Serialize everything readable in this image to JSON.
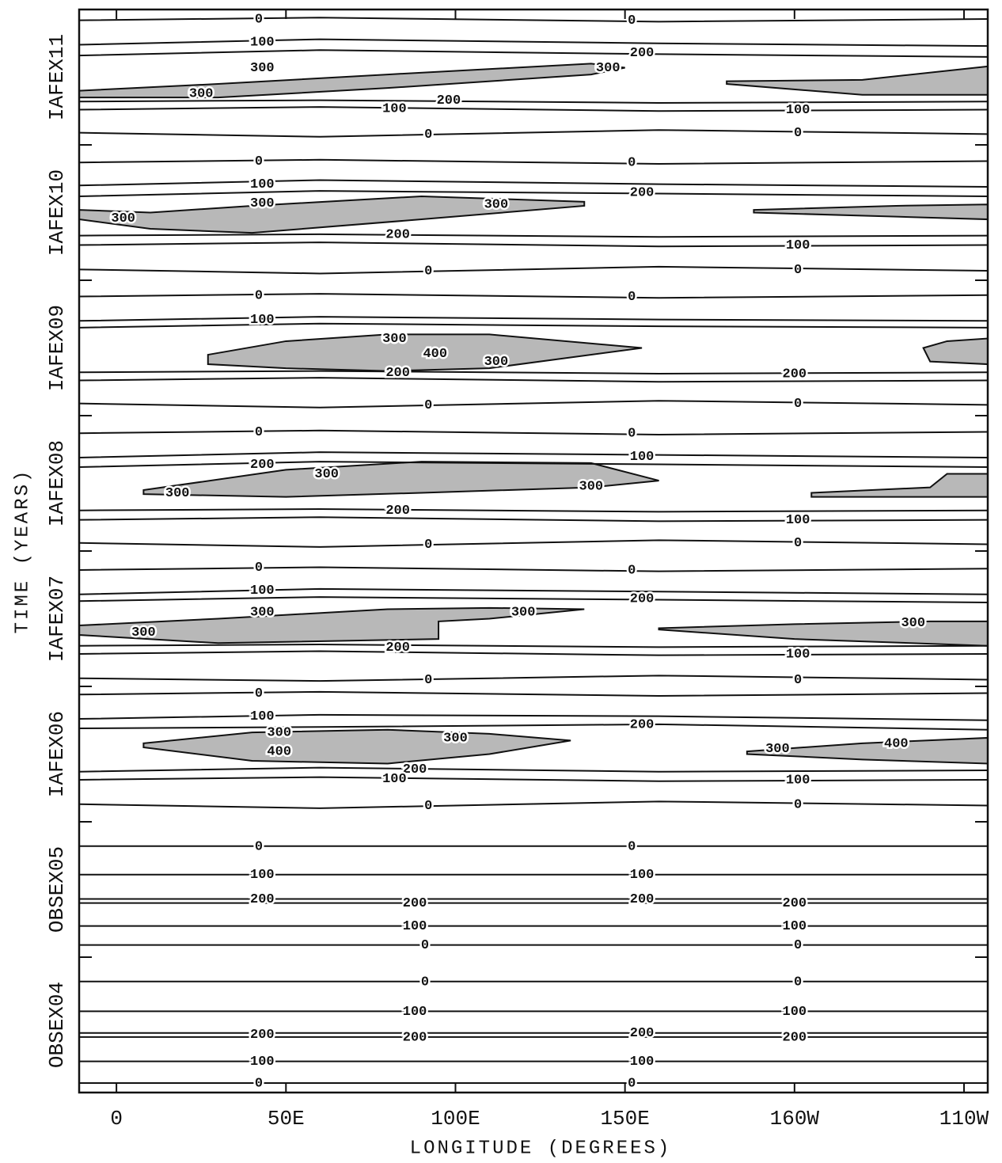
{
  "chart_data": {
    "type": "contour",
    "x_label": "LONGITUDE (DEGREES)",
    "y_label": "TIME (YEARS)",
    "xlim": [
      -11,
      257
    ],
    "ylim": [
      0,
      8
    ],
    "xticks": [
      0,
      {
        "value": 50,
        "label": "50E"
      },
      {
        "value": 100,
        "label": "100E"
      },
      {
        "value": 150,
        "label": "150E"
      },
      {
        "value": 200,
        "label": "160W"
      },
      {
        "value": 250,
        "label": "110W"
      }
    ],
    "categories": [
      "OBSEX04",
      "OBSEX05",
      "IAFEX06",
      "IAFEX07",
      "IAFEX08",
      "IAFEX09",
      "IAFEX10",
      "IAFEX11"
    ],
    "line_color": "#111111",
    "shade_color": "#b8b8b8",
    "contours": [
      {
        "x": [
          -11,
          257
        ],
        "y": [
          0.07,
          0.07
        ]
      },
      {
        "x": [
          -11,
          257
        ],
        "y": [
          0.23,
          0.23
        ]
      },
      {
        "x": [
          -11,
          257
        ],
        "y": [
          0.41,
          0.41
        ]
      },
      {
        "x": [
          -11,
          257
        ],
        "y": [
          0.44,
          0.44
        ]
      },
      {
        "x": [
          -11,
          257
        ],
        "y": [
          0.6,
          0.6
        ]
      },
      {
        "x": [
          -11,
          257
        ],
        "y": [
          0.82,
          0.82
        ]
      },
      {
        "x": [
          -11,
          257
        ],
        "y": [
          1.09,
          1.09
        ]
      },
      {
        "x": [
          -11,
          257
        ],
        "y": [
          1.23,
          1.23
        ]
      },
      {
        "x": [
          -11,
          257
        ],
        "y": [
          1.4,
          1.4
        ]
      },
      {
        "x": [
          -11,
          257
        ],
        "y": [
          1.43,
          1.43
        ]
      },
      {
        "x": [
          -11,
          257
        ],
        "y": [
          1.61,
          1.61
        ]
      },
      {
        "x": [
          -11,
          257
        ],
        "y": [
          1.82,
          1.82
        ]
      },
      {
        "x": [
          -11,
          60,
          160,
          257
        ],
        "y": [
          2.13,
          2.1,
          2.15,
          2.12
        ]
      },
      {
        "x": [
          -11,
          60,
          160,
          257
        ],
        "y": [
          2.31,
          2.33,
          2.3,
          2.31
        ]
      },
      {
        "x": [
          -11,
          60,
          160,
          257
        ],
        "y": [
          2.37,
          2.4,
          2.37,
          2.38
        ]
      },
      {
        "x": [
          -11,
          60,
          160,
          257
        ],
        "y": [
          2.69,
          2.7,
          2.72,
          2.68
        ]
      },
      {
        "x": [
          -11,
          60,
          160,
          257
        ],
        "y": [
          2.76,
          2.79,
          2.78,
          2.75
        ]
      },
      {
        "x": [
          -11,
          60,
          160,
          257
        ],
        "y": [
          2.94,
          2.96,
          2.93,
          2.95
        ]
      },
      {
        "x": [
          -11,
          60,
          160,
          257
        ],
        "y": [
          3.06,
          3.04,
          3.08,
          3.05
        ]
      },
      {
        "x": [
          -11,
          60,
          160,
          257
        ],
        "y": [
          3.24,
          3.26,
          3.23,
          3.24
        ]
      },
      {
        "x": [
          -11,
          60,
          160,
          257
        ],
        "y": [
          3.3,
          3.31,
          3.29,
          3.3
        ]
      },
      {
        "x": [
          -11,
          60,
          160,
          257
        ],
        "y": [
          3.63,
          3.66,
          3.64,
          3.62
        ]
      },
      {
        "x": [
          -11,
          60,
          160,
          257
        ],
        "y": [
          3.68,
          3.72,
          3.7,
          3.68
        ]
      },
      {
        "x": [
          -11,
          60,
          160,
          257
        ],
        "y": [
          3.86,
          3.88,
          3.85,
          3.87
        ]
      },
      {
        "x": [
          -11,
          60,
          160,
          257
        ],
        "y": [
          4.06,
          4.03,
          4.08,
          4.05
        ]
      },
      {
        "x": [
          -11,
          60,
          160,
          257
        ],
        "y": [
          4.23,
          4.25,
          4.22,
          4.23
        ]
      },
      {
        "x": [
          -11,
          60,
          160,
          257
        ],
        "y": [
          4.3,
          4.31,
          4.29,
          4.3
        ]
      },
      {
        "x": [
          -11,
          60,
          160,
          257
        ],
        "y": [
          4.62,
          4.66,
          4.64,
          4.62
        ]
      },
      {
        "x": [
          -11,
          60,
          160,
          257
        ],
        "y": [
          4.69,
          4.73,
          4.71,
          4.69
        ]
      },
      {
        "x": [
          -11,
          60,
          160,
          257
        ],
        "y": [
          4.87,
          4.89,
          4.86,
          4.88
        ]
      },
      {
        "x": [
          -11,
          60,
          160,
          257
        ],
        "y": [
          5.09,
          5.06,
          5.11,
          5.08
        ]
      },
      {
        "x": [
          -11,
          60,
          160,
          257
        ],
        "y": [
          5.26,
          5.28,
          5.25,
          5.26
        ]
      },
      {
        "x": [
          -11,
          60,
          160,
          257
        ],
        "y": [
          5.32,
          5.33,
          5.31,
          5.32
        ]
      },
      {
        "x": [
          -11,
          60,
          160,
          257
        ],
        "y": [
          5.65,
          5.68,
          5.66,
          5.65
        ]
      },
      {
        "x": [
          -11,
          60,
          160,
          257
        ],
        "y": [
          5.7,
          5.73,
          5.71,
          5.7
        ]
      },
      {
        "x": [
          -11,
          60,
          160,
          257
        ],
        "y": [
          5.88,
          5.9,
          5.87,
          5.89
        ]
      },
      {
        "x": [
          -11,
          60,
          160,
          257
        ],
        "y": [
          6.08,
          6.05,
          6.1,
          6.07
        ]
      },
      {
        "x": [
          -11,
          60,
          160,
          257
        ],
        "y": [
          6.26,
          6.28,
          6.25,
          6.26
        ]
      },
      {
        "x": [
          -11,
          60,
          160,
          257
        ],
        "y": [
          6.33,
          6.34,
          6.32,
          6.33
        ]
      },
      {
        "x": [
          -11,
          60,
          160,
          257
        ],
        "y": [
          6.62,
          6.66,
          6.64,
          6.62
        ]
      },
      {
        "x": [
          -11,
          60,
          160,
          257
        ],
        "y": [
          6.7,
          6.74,
          6.71,
          6.69
        ]
      },
      {
        "x": [
          -11,
          60,
          160,
          257
        ],
        "y": [
          6.87,
          6.89,
          6.86,
          6.88
        ]
      },
      {
        "x": [
          -11,
          60,
          160,
          257
        ],
        "y": [
          7.09,
          7.06,
          7.11,
          7.08
        ]
      },
      {
        "x": [
          -11,
          60,
          160,
          257
        ],
        "y": [
          7.26,
          7.28,
          7.25,
          7.26
        ]
      },
      {
        "x": [
          -11,
          60,
          160,
          257
        ],
        "y": [
          7.32,
          7.33,
          7.31,
          7.32
        ]
      },
      {
        "x": [
          -11,
          60,
          160,
          257
        ],
        "y": [
          7.66,
          7.7,
          7.67,
          7.65
        ]
      },
      {
        "x": [
          -11,
          60,
          160,
          257
        ],
        "y": [
          7.74,
          7.78,
          7.75,
          7.73
        ]
      },
      {
        "x": [
          -11,
          60,
          160,
          257
        ],
        "y": [
          7.92,
          7.94,
          7.91,
          7.93
        ]
      }
    ],
    "shaded": [
      {
        "x": [
          -11,
          30,
          80,
          140,
          150,
          140,
          80,
          30,
          -11
        ],
        "y": [
          7.4,
          7.45,
          7.52,
          7.6,
          7.57,
          7.52,
          7.42,
          7.35,
          7.35
        ]
      },
      {
        "x": [
          180,
          220,
          257,
          257,
          220,
          180
        ],
        "y": [
          7.47,
          7.48,
          7.58,
          7.37,
          7.37,
          7.45
        ]
      },
      {
        "x": [
          -11,
          10,
          40,
          90,
          138,
          138,
          90,
          40,
          10,
          -11
        ],
        "y": [
          6.52,
          6.5,
          6.55,
          6.62,
          6.58,
          6.55,
          6.45,
          6.35,
          6.38,
          6.45
        ]
      },
      {
        "x": [
          188,
          230,
          257,
          257,
          230,
          188
        ],
        "y": [
          6.52,
          6.55,
          6.56,
          6.45,
          6.47,
          6.5
        ]
      },
      {
        "x": [
          27,
          50,
          80,
          110,
          155,
          110,
          80,
          50,
          27
        ],
        "y": [
          5.45,
          5.55,
          5.6,
          5.6,
          5.5,
          5.35,
          5.33,
          5.35,
          5.38
        ]
      },
      {
        "x": [
          238,
          245,
          257,
          257,
          240
        ],
        "y": [
          5.5,
          5.55,
          5.57,
          5.38,
          5.4
        ]
      },
      {
        "x": [
          8,
          50,
          90,
          140,
          160,
          140,
          90,
          50,
          8
        ],
        "y": [
          4.45,
          4.6,
          4.66,
          4.65,
          4.52,
          4.47,
          4.43,
          4.4,
          4.42
        ]
      },
      {
        "x": [
          205,
          240,
          245,
          257,
          257,
          205
        ],
        "y": [
          4.43,
          4.47,
          4.57,
          4.57,
          4.4,
          4.4
        ]
      },
      {
        "x": [
          -11,
          30,
          80,
          110,
          138,
          110,
          95,
          95,
          30,
          -11
        ],
        "y": [
          3.45,
          3.5,
          3.57,
          3.58,
          3.57,
          3.5,
          3.48,
          3.35,
          3.32,
          3.38
        ]
      },
      {
        "x": [
          160,
          200,
          240,
          257,
          257,
          200,
          160
        ],
        "y": [
          3.43,
          3.46,
          3.48,
          3.48,
          3.3,
          3.35,
          3.42
        ]
      },
      {
        "x": [
          8,
          40,
          80,
          110,
          134,
          110,
          80,
          40,
          8
        ],
        "y": [
          2.58,
          2.66,
          2.68,
          2.65,
          2.6,
          2.5,
          2.43,
          2.45,
          2.55
        ]
      },
      {
        "x": [
          186,
          220,
          257,
          257,
          220,
          186
        ],
        "y": [
          2.52,
          2.58,
          2.62,
          2.43,
          2.46,
          2.5
        ]
      }
    ],
    "contour_labels": [
      {
        "text": "0",
        "x": 42,
        "y": 0.07
      },
      {
        "text": "100",
        "x": 43,
        "y": 0.23
      },
      {
        "text": "200",
        "x": 43,
        "y": 0.43
      },
      {
        "text": "100",
        "x": 88,
        "y": 0.6
      },
      {
        "text": "0",
        "x": 91,
        "y": 0.82
      },
      {
        "text": "0",
        "x": 152,
        "y": 0.07
      },
      {
        "text": "100",
        "x": 155,
        "y": 0.23
      },
      {
        "text": "200",
        "x": 155,
        "y": 0.44
      },
      {
        "text": "200",
        "x": 200,
        "y": 0.41
      },
      {
        "text": "100",
        "x": 200,
        "y": 0.6
      },
      {
        "text": "0",
        "x": 201,
        "y": 0.82
      },
      {
        "text": "200",
        "x": 88,
        "y": 0.41
      },
      {
        "text": "0",
        "x": 91,
        "y": 1.09
      },
      {
        "text": "100",
        "x": 88,
        "y": 1.23
      },
      {
        "text": "200",
        "x": 88,
        "y": 1.4
      },
      {
        "text": "200",
        "x": 43,
        "y": 1.43
      },
      {
        "text": "100",
        "x": 43,
        "y": 1.61
      },
      {
        "text": "0",
        "x": 42,
        "y": 1.82
      },
      {
        "text": "0",
        "x": 201,
        "y": 1.09
      },
      {
        "text": "100",
        "x": 200,
        "y": 1.23
      },
      {
        "text": "200",
        "x": 200,
        "y": 1.4
      },
      {
        "text": "200",
        "x": 155,
        "y": 1.43
      },
      {
        "text": "100",
        "x": 155,
        "y": 1.61
      },
      {
        "text": "0",
        "x": 152,
        "y": 1.82
      },
      {
        "text": "0",
        "x": 42,
        "y": 2.95
      },
      {
        "text": "100",
        "x": 43,
        "y": 2.78
      },
      {
        "text": "300",
        "x": 48,
        "y": 2.66
      },
      {
        "text": "400",
        "x": 48,
        "y": 2.52
      },
      {
        "text": "300",
        "x": 100,
        "y": 2.62
      },
      {
        "text": "200",
        "x": 88,
        "y": 2.39
      },
      {
        "text": "100",
        "x": 82,
        "y": 2.32
      },
      {
        "text": "0",
        "x": 92,
        "y": 2.12
      },
      {
        "text": "300",
        "x": 195,
        "y": 2.54
      },
      {
        "text": "400",
        "x": 230,
        "y": 2.58
      },
      {
        "text": "100",
        "x": 201,
        "y": 2.31
      },
      {
        "text": "0",
        "x": 201,
        "y": 2.13
      },
      {
        "text": "200",
        "x": 155,
        "y": 2.72
      },
      {
        "text": "0",
        "x": 42,
        "y": 3.88
      },
      {
        "text": "100",
        "x": 43,
        "y": 3.71
      },
      {
        "text": "300",
        "x": 43,
        "y": 3.55
      },
      {
        "text": "300",
        "x": 8,
        "y": 3.4
      },
      {
        "text": "300",
        "x": 120,
        "y": 3.55
      },
      {
        "text": "200",
        "x": 83,
        "y": 3.29
      },
      {
        "text": "0",
        "x": 92,
        "y": 3.05
      },
      {
        "text": "0",
        "x": 152,
        "y": 3.86
      },
      {
        "text": "200",
        "x": 155,
        "y": 3.65
      },
      {
        "text": "300",
        "x": 235,
        "y": 3.47
      },
      {
        "text": "100",
        "x": 201,
        "y": 3.24
      },
      {
        "text": "0",
        "x": 201,
        "y": 3.05
      },
      {
        "text": "0",
        "x": 42,
        "y": 4.88
      },
      {
        "text": "200",
        "x": 43,
        "y": 4.64
      },
      {
        "text": "300",
        "x": 62,
        "y": 4.57
      },
      {
        "text": "300",
        "x": 18,
        "y": 4.43
      },
      {
        "text": "300",
        "x": 140,
        "y": 4.48
      },
      {
        "text": "200",
        "x": 83,
        "y": 4.3
      },
      {
        "text": "0",
        "x": 92,
        "y": 4.05
      },
      {
        "text": "0",
        "x": 152,
        "y": 4.87
      },
      {
        "text": "100",
        "x": 155,
        "y": 4.7
      },
      {
        "text": "100",
        "x": 201,
        "y": 4.23
      },
      {
        "text": "0",
        "x": 201,
        "y": 4.06
      },
      {
        "text": "0",
        "x": 42,
        "y": 5.89
      },
      {
        "text": "100",
        "x": 43,
        "y": 5.71
      },
      {
        "text": "300",
        "x": 82,
        "y": 5.57
      },
      {
        "text": "400",
        "x": 94,
        "y": 5.46
      },
      {
        "text": "300",
        "x": 112,
        "y": 5.4
      },
      {
        "text": "200",
        "x": 83,
        "y": 5.32
      },
      {
        "text": "0",
        "x": 92,
        "y": 5.08
      },
      {
        "text": "0",
        "x": 152,
        "y": 5.88
      },
      {
        "text": "200",
        "x": 200,
        "y": 5.31
      },
      {
        "text": "0",
        "x": 201,
        "y": 5.09
      },
      {
        "text": "0",
        "x": 42,
        "y": 6.88
      },
      {
        "text": "100",
        "x": 43,
        "y": 6.71
      },
      {
        "text": "300",
        "x": 43,
        "y": 6.57
      },
      {
        "text": "300",
        "x": 2,
        "y": 6.46
      },
      {
        "text": "300",
        "x": 112,
        "y": 6.56
      },
      {
        "text": "200",
        "x": 83,
        "y": 6.34
      },
      {
        "text": "0",
        "x": 92,
        "y": 6.07
      },
      {
        "text": "0",
        "x": 152,
        "y": 6.87
      },
      {
        "text": "200",
        "x": 155,
        "y": 6.65
      },
      {
        "text": "100",
        "x": 201,
        "y": 6.26
      },
      {
        "text": "0",
        "x": 201,
        "y": 6.08
      },
      {
        "text": "0",
        "x": 42,
        "y": 7.93
      },
      {
        "text": "100",
        "x": 43,
        "y": 7.76
      },
      {
        "text": "300",
        "x": 43,
        "y": 7.57
      },
      {
        "text": "300",
        "x": 25,
        "y": 7.38
      },
      {
        "text": "300",
        "x": 145,
        "y": 7.57
      },
      {
        "text": "200",
        "x": 98,
        "y": 7.33
      },
      {
        "text": "100",
        "x": 82,
        "y": 7.27
      },
      {
        "text": "0",
        "x": 92,
        "y": 7.08
      },
      {
        "text": "0",
        "x": 152,
        "y": 7.92
      },
      {
        "text": "200",
        "x": 155,
        "y": 7.68
      },
      {
        "text": "100",
        "x": 201,
        "y": 7.26
      },
      {
        "text": "0",
        "x": 201,
        "y": 7.09
      }
    ]
  }
}
